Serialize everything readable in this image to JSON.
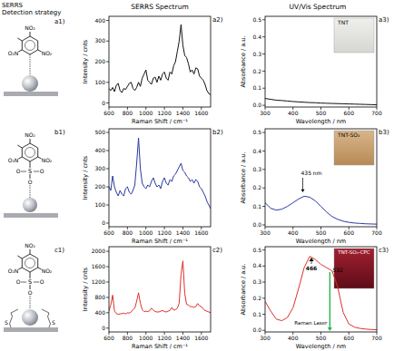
{
  "headers": {
    "strategy": [
      "SERRS",
      "Detection strategy"
    ],
    "serrs": "SERRS Spectrum",
    "uvvis": "UV/Vis Spectrum"
  },
  "diagrams": [
    {
      "label": "a1)",
      "atoms": [
        "NO₂",
        "O₂N",
        "NO₂"
      ]
    },
    {
      "label": "b1)",
      "atoms": [
        "NO₂",
        "O₂N",
        "NO₂",
        "S",
        "O",
        "O",
        "O"
      ]
    },
    {
      "label": "c1)",
      "atoms": [
        "NO₂",
        "O₂N",
        "NO₂",
        "S",
        "O",
        "O",
        "O",
        "S",
        "S"
      ]
    }
  ],
  "chart_data": [
    {
      "type": "line",
      "title": "a2)",
      "x_label": "Raman Shift / cm⁻¹",
      "y_label": "Intensity / cnts",
      "color": "#111111",
      "xlim": [
        600,
        1700
      ],
      "xticks": [
        600,
        800,
        1000,
        1200,
        1400,
        1600
      ],
      "ylim": [
        -20,
        420
      ],
      "yticks": [
        0,
        100,
        200,
        300,
        400
      ],
      "x": [
        600,
        620,
        640,
        660,
        680,
        700,
        720,
        740,
        760,
        780,
        800,
        820,
        840,
        860,
        880,
        900,
        920,
        940,
        960,
        980,
        1000,
        1020,
        1040,
        1060,
        1080,
        1100,
        1120,
        1140,
        1160,
        1180,
        1200,
        1220,
        1240,
        1260,
        1280,
        1300,
        1320,
        1340,
        1360,
        1380,
        1400,
        1420,
        1440,
        1460,
        1480,
        1500,
        1520,
        1540,
        1560,
        1580,
        1600,
        1620,
        1640,
        1660,
        1680,
        1700
      ],
      "values": [
        70,
        60,
        75,
        55,
        85,
        95,
        60,
        50,
        70,
        65,
        80,
        95,
        100,
        70,
        60,
        75,
        100,
        80,
        120,
        140,
        160,
        110,
        100,
        90,
        120,
        125,
        100,
        130,
        110,
        140,
        150,
        120,
        110,
        150,
        140,
        180,
        200,
        250,
        300,
        380,
        280,
        230,
        220,
        190,
        150,
        160,
        140,
        170,
        165,
        130,
        120,
        110,
        90,
        60,
        45,
        40
      ]
    },
    {
      "type": "line",
      "title": "b2)",
      "x_label": "Raman Shift / cm⁻¹",
      "y_label": "Intensity / cnts",
      "color": "#2a3a9e",
      "xlim": [
        600,
        1700
      ],
      "xticks": [
        600,
        800,
        1000,
        1200,
        1400,
        1600
      ],
      "ylim": [
        -20,
        520
      ],
      "yticks": [
        0,
        100,
        200,
        300,
        400,
        500
      ],
      "x": [
        600,
        620,
        640,
        660,
        680,
        700,
        720,
        740,
        760,
        780,
        800,
        820,
        840,
        860,
        880,
        900,
        920,
        940,
        960,
        980,
        1000,
        1020,
        1040,
        1060,
        1080,
        1100,
        1120,
        1140,
        1160,
        1180,
        1200,
        1220,
        1240,
        1260,
        1280,
        1300,
        1320,
        1340,
        1360,
        1380,
        1400,
        1420,
        1440,
        1460,
        1480,
        1500,
        1520,
        1540,
        1560,
        1580,
        1600,
        1620,
        1640,
        1660,
        1680,
        1700
      ],
      "values": [
        200,
        180,
        260,
        200,
        170,
        150,
        180,
        160,
        150,
        190,
        200,
        170,
        160,
        180,
        210,
        330,
        470,
        300,
        220,
        200,
        190,
        210,
        200,
        230,
        250,
        220,
        200,
        210,
        190,
        230,
        250,
        220,
        210,
        240,
        230,
        260,
        270,
        290,
        310,
        330,
        290,
        280,
        260,
        250,
        230,
        240,
        220,
        240,
        230,
        200,
        190,
        170,
        150,
        120,
        100,
        80
      ]
    },
    {
      "type": "line",
      "title": "c2)",
      "x_label": "Raman Shift / cm⁻¹",
      "y_label": "Intensity / cnts",
      "color": "#e0302a",
      "xlim": [
        600,
        1700
      ],
      "xticks": [
        600,
        800,
        1000,
        1200,
        1400,
        1600
      ],
      "ylim": [
        -100,
        2120
      ],
      "yticks": [
        0,
        400,
        800,
        1200,
        1600,
        2000
      ],
      "x": [
        600,
        620,
        640,
        660,
        680,
        700,
        720,
        740,
        760,
        780,
        800,
        820,
        840,
        860,
        880,
        900,
        920,
        940,
        960,
        980,
        1000,
        1020,
        1040,
        1060,
        1080,
        1100,
        1120,
        1140,
        1160,
        1180,
        1200,
        1220,
        1240,
        1260,
        1280,
        1300,
        1320,
        1340,
        1360,
        1380,
        1400,
        1420,
        1440,
        1460,
        1480,
        1500,
        1520,
        1540,
        1560,
        1580,
        1600,
        1620,
        1640,
        1660,
        1680,
        1700
      ],
      "values": [
        450,
        600,
        860,
        450,
        380,
        360,
        370,
        380,
        390,
        370,
        400,
        390,
        420,
        480,
        520,
        700,
        920,
        650,
        480,
        430,
        440,
        430,
        450,
        520,
        470,
        430,
        420,
        420,
        440,
        460,
        430,
        420,
        440,
        460,
        540,
        470,
        480,
        520,
        650,
        1400,
        1750,
        900,
        620,
        600,
        560,
        560,
        540,
        560,
        640,
        580,
        560,
        500,
        460,
        440,
        420,
        400
      ]
    },
    {
      "type": "line",
      "title": "a3)",
      "x_label": "Wavelength / nm",
      "y_label": "Absorbance / a.u.",
      "color": "#111111",
      "xlim": [
        300,
        700
      ],
      "xticks": [
        300,
        400,
        500,
        600,
        700
      ],
      "ylim": [
        -0.01,
        0.52
      ],
      "yticks": [
        {
          "value": 0,
          "label": "0.0"
        },
        0.1,
        0.2,
        0.3,
        0.4,
        0.5
      ],
      "x": [
        300,
        320,
        340,
        360,
        380,
        400,
        420,
        440,
        460,
        480,
        500,
        520,
        540,
        560,
        580,
        600,
        620,
        640,
        660,
        680,
        700
      ],
      "values": [
        0.04,
        0.035,
        0.03,
        0.028,
        0.025,
        0.022,
        0.02,
        0.018,
        0.016,
        0.015,
        0.013,
        0.012,
        0.011,
        0.01,
        0.009,
        0.008,
        0.007,
        0.006,
        0.005,
        0.004,
        0.003
      ],
      "annotations": [
        {
          "text": "TNT"
        }
      ]
    },
    {
      "type": "line",
      "title": "b3)",
      "x_label": "Wavelength / nm",
      "y_label": "Absorbance / a.u.",
      "color": "#2a3a9e",
      "xlim": [
        300,
        700
      ],
      "xticks": [
        300,
        400,
        500,
        600,
        700
      ],
      "ylim": [
        -0.01,
        0.52
      ],
      "yticks": [
        {
          "value": 0,
          "label": "0.0"
        },
        0.1,
        0.2,
        0.3,
        0.4,
        0.5
      ],
      "x": [
        300,
        320,
        340,
        360,
        380,
        400,
        420,
        440,
        460,
        480,
        500,
        520,
        540,
        560,
        580,
        600,
        620,
        640,
        660,
        680,
        700
      ],
      "values": [
        0.12,
        0.09,
        0.08,
        0.085,
        0.1,
        0.12,
        0.14,
        0.155,
        0.15,
        0.13,
        0.1,
        0.07,
        0.045,
        0.03,
        0.02,
        0.014,
        0.01,
        0.008,
        0.006,
        0.005,
        0.004
      ],
      "annotations": [
        {
          "text": "435 nm",
          "x": 435
        },
        {
          "text": "TNT-SO₃"
        }
      ]
    },
    {
      "type": "line",
      "title": "c3)",
      "x_label": "Wavelength / nm",
      "y_label": "Absorbance / a.u.",
      "color": "#e0302a",
      "xlim": [
        300,
        700
      ],
      "xticks": [
        300,
        400,
        500,
        600,
        700
      ],
      "ylim": [
        -0.01,
        0.52
      ],
      "yticks": [
        {
          "value": 0,
          "label": "0.0"
        },
        0.1,
        0.2,
        0.3,
        0.4,
        0.5
      ],
      "x": [
        300,
        320,
        340,
        360,
        380,
        400,
        420,
        440,
        460,
        480,
        500,
        520,
        540,
        560,
        580,
        600,
        620,
        640,
        660,
        680,
        700
      ],
      "values": [
        0.18,
        0.12,
        0.07,
        0.06,
        0.08,
        0.14,
        0.26,
        0.39,
        0.46,
        0.44,
        0.41,
        0.39,
        0.37,
        0.27,
        0.11,
        0.04,
        0.02,
        0.012,
        0.008,
        0.005,
        0.004
      ],
      "annotations": [
        {
          "text": "TNT-SO₃-CPC"
        },
        {
          "text": "466",
          "x": 466
        },
        {
          "text": "532",
          "x": 532
        },
        {
          "text": "Raman Laser"
        }
      ]
    }
  ]
}
